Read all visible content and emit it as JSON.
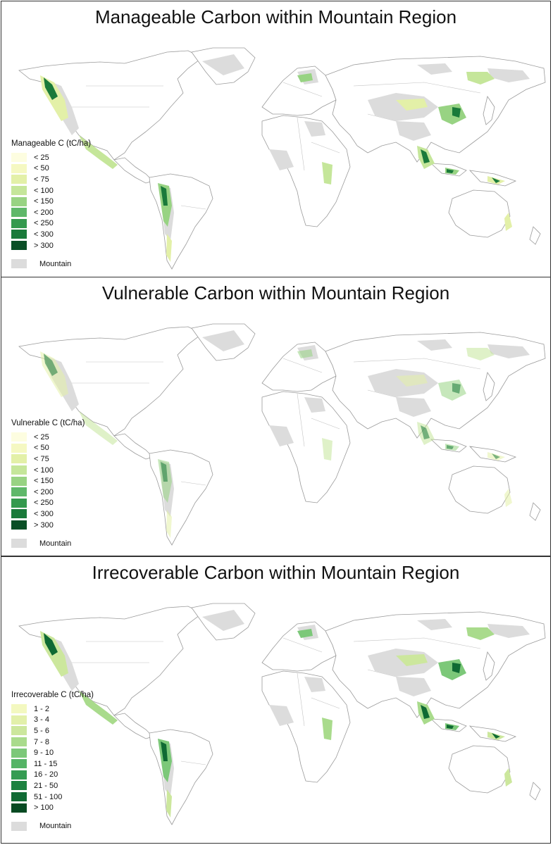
{
  "mountain_color": "#dcdcdc",
  "land_color": "#ffffff",
  "border_color": "#9a9a9a",
  "panels": [
    {
      "title": "Manageable Carbon within Mountain Region",
      "legend_title": "Manageable C (tC/ha)",
      "legend_items": [
        {
          "label": "< 25",
          "color": "#fdfde0"
        },
        {
          "label": "< 50",
          "color": "#f5f8c2"
        },
        {
          "label": "< 75",
          "color": "#e3f0a8"
        },
        {
          "label": "< 100",
          "color": "#c5e69a"
        },
        {
          "label": "< 150",
          "color": "#98d383"
        },
        {
          "label": "< 200",
          "color": "#5fb86a"
        },
        {
          "label": "< 250",
          "color": "#349a4e"
        },
        {
          "label": "< 300",
          "color": "#1a7a3a"
        },
        {
          "label": "> 300",
          "color": "#0a4f26"
        }
      ],
      "mountain_label": "Mountain"
    },
    {
      "title": "Vulnerable Carbon within Mountain Region",
      "legend_title": "Vulnerable C (tC/ha)",
      "legend_items": [
        {
          "label": "< 25",
          "color": "#fdfde0"
        },
        {
          "label": "< 50",
          "color": "#f5f8c2"
        },
        {
          "label": "< 75",
          "color": "#e3f0a8"
        },
        {
          "label": "< 100",
          "color": "#c5e69a"
        },
        {
          "label": "< 150",
          "color": "#98d383"
        },
        {
          "label": "< 200",
          "color": "#5fb86a"
        },
        {
          "label": "< 250",
          "color": "#349a4e"
        },
        {
          "label": "< 300",
          "color": "#1a7a3a"
        },
        {
          "label": "> 300",
          "color": "#0a4f26"
        }
      ],
      "mountain_label": "Mountain"
    },
    {
      "title": "Irrecoverable Carbon within Mountain Region",
      "legend_title": "Irrecoverable C (tC/ha)",
      "legend_items": [
        {
          "label": "1 - 2",
          "color": "#f3f8c0"
        },
        {
          "label": "3 - 4",
          "color": "#e2f0aa"
        },
        {
          "label": "5 - 6",
          "color": "#cce79d"
        },
        {
          "label": "7 - 8",
          "color": "#a9db8c"
        },
        {
          "label": "9 - 10",
          "color": "#7cc879"
        },
        {
          "label": "11 - 15",
          "color": "#55b466"
        },
        {
          "label": "16 - 20",
          "color": "#359c52"
        },
        {
          "label": "21 - 50",
          "color": "#1d8240"
        },
        {
          "label": "51 - 100",
          "color": "#0f6a33"
        },
        {
          "label": "> 100",
          "color": "#064a22"
        }
      ],
      "mountain_label": "Mountain"
    }
  ]
}
